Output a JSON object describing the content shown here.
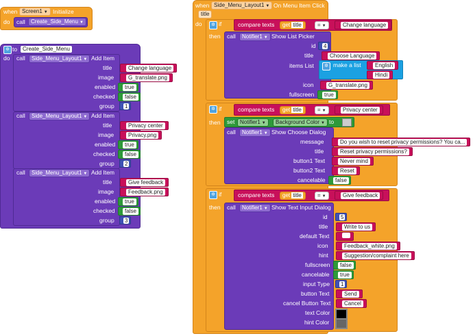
{
  "block1": {
    "when": "when",
    "component": "Screen1",
    "event": "Initialize",
    "do": "do",
    "call": "call",
    "proc": "Create_Side_Menu"
  },
  "block2": {
    "to": "to",
    "proc": "Create_Side_Menu",
    "do": "do",
    "items": [
      {
        "call": "call",
        "component": "Side_Menu_Layout1",
        "method": "Add Item",
        "title_lbl": "title",
        "title": "Change language",
        "image_lbl": "image",
        "image": "G_translate.png",
        "enabled_lbl": "enabled",
        "enabled": "true",
        "checked_lbl": "checked",
        "checked": "false",
        "group_lbl": "group",
        "group": "1"
      },
      {
        "call": "call",
        "component": "Side_Menu_Layout1",
        "method": "Add Item",
        "title_lbl": "title",
        "title": "Privacy center",
        "image_lbl": "image",
        "image": "Privacy.png",
        "enabled_lbl": "enabled",
        "enabled": "true",
        "checked_lbl": "checked",
        "checked": "false",
        "group_lbl": "group",
        "group": "2"
      },
      {
        "call": "call",
        "component": "Side_Menu_Layout1",
        "method": "Add Item",
        "title_lbl": "title",
        "title": "Give feedback",
        "image_lbl": "image",
        "image": "Feedback.png",
        "enabled_lbl": "enabled",
        "enabled": "true",
        "checked_lbl": "checked",
        "checked": "false",
        "group_lbl": "group",
        "group": "3"
      }
    ]
  },
  "block3": {
    "when": "when",
    "component": "Side_Menu_Layout1",
    "event": "On Menu Item Click",
    "param": "title",
    "do": "do",
    "if": "if",
    "then": "then",
    "compare": "compare texts",
    "get": "get",
    "getvar": "title",
    "op": "=",
    "if1": {
      "value": "Change language",
      "call": "call",
      "component": "Notifier1",
      "method": "Show List Picker",
      "id_lbl": "id",
      "id": "4",
      "title_lbl": "title",
      "title": "Choose Language",
      "items_lbl": "items List",
      "makelist": "make a list",
      "list": [
        "English",
        "Hindi"
      ],
      "icon_lbl": "icon",
      "icon": "G_translate.png",
      "fullscreen_lbl": "fullscreen",
      "fullscreen": "true"
    },
    "if2": {
      "value": "Privacy center",
      "set": "set",
      "set_comp": "Notifier1",
      "set_prop": "Background Color",
      "to": "to",
      "call": "call",
      "component": "Notifier1",
      "method": "Show Choose Dialog",
      "message_lbl": "message",
      "message": "Do you wish to reset privacy permissions? You ca...",
      "title_lbl": "title",
      "title": "Reset privacy permissions?",
      "b1_lbl": "button1 Text",
      "b1": "Never mind",
      "b2_lbl": "button2 Text",
      "b2": "Reset",
      "cancelable_lbl": "cancelable",
      "cancelable": "false",
      "bg_color": "#cccccc"
    },
    "if3": {
      "value": "Give feedback",
      "call": "call",
      "component": "Notifier1",
      "method": "Show Text Input Dialog",
      "id_lbl": "id",
      "id": "5",
      "title_lbl": "title",
      "title": "Write to us",
      "default_lbl": "default Text",
      "default": "",
      "icon_lbl": "icon",
      "icon": "Feedback_white.png",
      "hint_lbl": "hint",
      "hint": "Suggestion/complaint here",
      "fullscreen_lbl": "fullscreen",
      "fullscreen": "false",
      "cancelable_lbl": "cancelable",
      "cancelable": "true",
      "input_lbl": "input Type",
      "input": "1",
      "button_lbl": "button Text",
      "button": "Send",
      "cancel_lbl": "cancel Button Text",
      "cancel": "Cancel",
      "textcolor_lbl": "text Color",
      "textcolor": "#000000",
      "hintcolor_lbl": "hint Color",
      "hintcolor": "#666666"
    }
  },
  "icons": {
    "gear": "gear-icon",
    "caret": "caret-down-icon"
  }
}
